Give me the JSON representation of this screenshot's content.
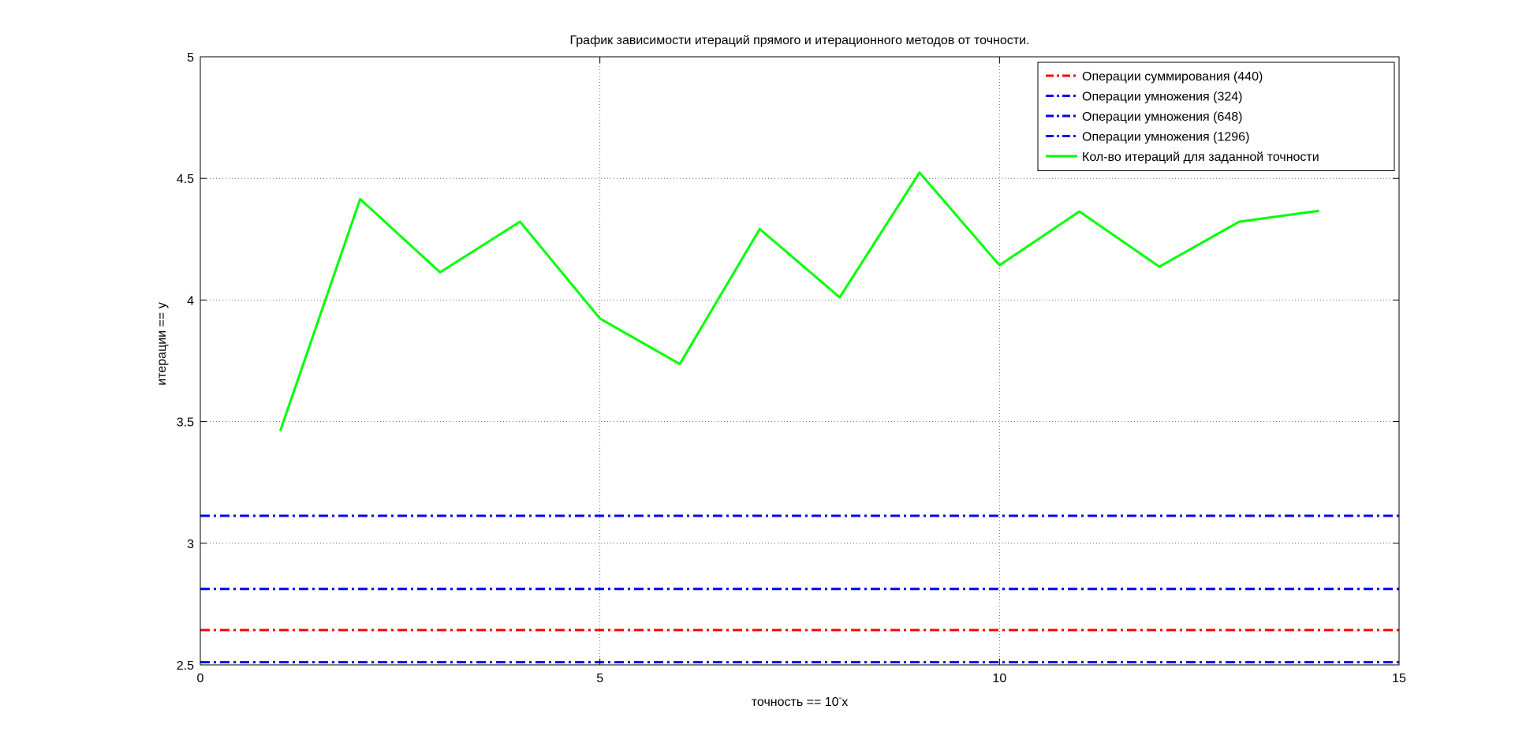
{
  "chart_data": {
    "type": "line",
    "title": "График зависимости итераций прямого и итерационного методов от точности.",
    "xlabel": "точность == 10",
    "xlabel_sup": "-",
    "xlabel_suffix": "x",
    "ylabel": "итерации == y",
    "xlim": [
      0,
      15
    ],
    "ylim": [
      2.5,
      5
    ],
    "grid": true,
    "legend_position": "top-right",
    "x_ticks": [
      0,
      5,
      10,
      15
    ],
    "y_ticks": [
      2.5,
      3,
      3.5,
      4,
      4.5,
      5
    ],
    "x_tick_labels": [
      "0",
      "5",
      "10",
      "15"
    ],
    "y_tick_labels": [
      "2.5",
      "3",
      "3.5",
      "4",
      "4.5",
      "5"
    ],
    "series": [
      {
        "name": "Операции суммирования (440)",
        "style": "dashdot",
        "color": "#ff0000",
        "constant": 2.643
      },
      {
        "name": "Операции умножения (324)",
        "style": "dashdot",
        "color": "#0000ff",
        "constant": 2.511
      },
      {
        "name": "Операции умножения (648)",
        "style": "dashdot",
        "color": "#0000ff",
        "constant": 2.812
      },
      {
        "name": "Операции умножения (1296)",
        "style": "dashdot",
        "color": "#0000ff",
        "constant": 3.113
      },
      {
        "name": "Кол-во итераций для заданной точности",
        "style": "solid",
        "color": "#00ff00",
        "x": [
          1,
          2,
          3,
          4,
          5,
          6,
          7,
          8,
          9,
          10,
          11,
          12,
          13,
          14
        ],
        "y": [
          3.462,
          4.415,
          4.114,
          4.322,
          3.924,
          3.737,
          4.292,
          4.011,
          4.524,
          4.143,
          4.364,
          4.137,
          4.322,
          4.367
        ]
      }
    ]
  }
}
